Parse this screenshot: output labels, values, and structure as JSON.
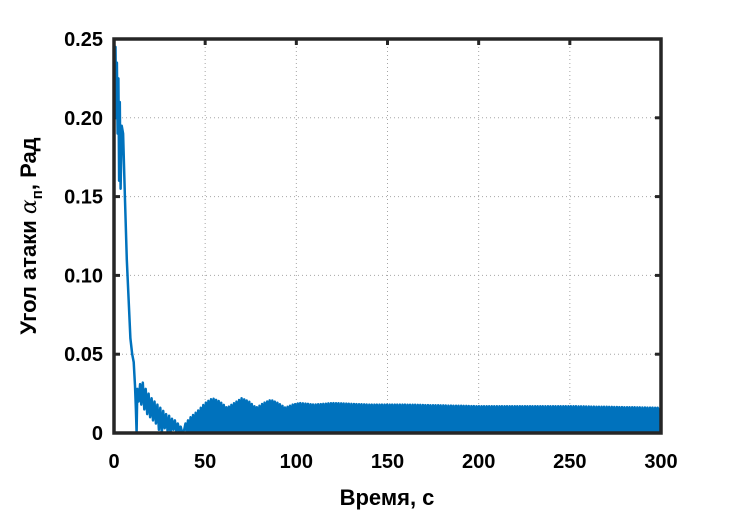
{
  "chart_data": {
    "type": "line",
    "xlabel": "Время, с",
    "ylabel_main": "Угол атаки ",
    "ylabel_symbol": "α",
    "ylabel_subscript": "п",
    "ylabel_unit": ", Рад",
    "xlim": [
      0,
      300
    ],
    "ylim": [
      0,
      0.25
    ],
    "x_ticks": [
      0,
      50,
      100,
      150,
      200,
      250,
      300
    ],
    "x_tick_labels": [
      "0",
      "50",
      "100",
      "150",
      "200",
      "250",
      "300"
    ],
    "y_ticks": [
      0,
      0.05,
      0.1,
      0.15,
      0.2,
      0.25
    ],
    "y_tick_labels": [
      "0",
      "0.05",
      "0.10",
      "0.15",
      "0.20",
      "0.25"
    ],
    "grid": true,
    "line_color": "#0072BD",
    "series": [
      {
        "points": [
          [
            0,
            0.25
          ],
          [
            0.4,
            0.215
          ],
          [
            0.8,
            0.245
          ],
          [
            1.2,
            0.2
          ],
          [
            1.6,
            0.235
          ],
          [
            2.0,
            0.19
          ],
          [
            2.4,
            0.225
          ],
          [
            2.8,
            0.16
          ],
          [
            3.2,
            0.21
          ],
          [
            3.6,
            0.155
          ],
          [
            4.2,
            0.195
          ],
          [
            5.0,
            0.19
          ],
          [
            6.0,
            0.15
          ],
          [
            7.0,
            0.11
          ],
          [
            8.0,
            0.085
          ],
          [
            9.0,
            0.06
          ],
          [
            10.0,
            0.05
          ],
          [
            10.8,
            0.045
          ],
          [
            11.5,
            0.03
          ],
          [
            12.0,
            0.015
          ],
          [
            12.4,
            0.0
          ],
          [
            12.8,
            0.028
          ],
          [
            13.5,
            0.02
          ],
          [
            14.3,
            0.031
          ],
          [
            15.0,
            0.018
          ],
          [
            15.8,
            0.032
          ],
          [
            16.6,
            0.015
          ],
          [
            17.4,
            0.028
          ],
          [
            18.2,
            0.012
          ],
          [
            19.0,
            0.025
          ],
          [
            19.8,
            0.01
          ],
          [
            20.6,
            0.022
          ],
          [
            21.4,
            0.008
          ],
          [
            22.2,
            0.02
          ],
          [
            23.0,
            0.006
          ],
          [
            23.8,
            0.018
          ],
          [
            24.6,
            0.002
          ],
          [
            25.4,
            0.016
          ],
          [
            26.2,
            0.0
          ],
          [
            27.0,
            0.014
          ],
          [
            27.8,
            0.003
          ],
          [
            28.6,
            0.012
          ],
          [
            29.4,
            0.001
          ],
          [
            30.2,
            0.011
          ],
          [
            31.0,
            0.0
          ],
          [
            31.8,
            0.009
          ],
          [
            32.6,
            0.002
          ],
          [
            33.4,
            0.008
          ],
          [
            34.2,
            0.0
          ],
          [
            35.0,
            0.006
          ],
          [
            35.8,
            0.001
          ],
          [
            36.6,
            0.004
          ],
          [
            37.4,
            0.0
          ],
          [
            38.5,
            0.002
          ]
        ],
        "oscillation": {
          "start": 38.5,
          "end": 300,
          "period": 1.4,
          "min": 0.0,
          "envelope": [
            [
              38.5,
              0.005
            ],
            [
              42,
              0.01
            ],
            [
              46,
              0.014
            ],
            [
              50,
              0.019
            ],
            [
              54,
              0.022
            ],
            [
              58,
              0.02
            ],
            [
              62,
              0.016
            ],
            [
              66,
              0.019
            ],
            [
              70,
              0.022
            ],
            [
              74,
              0.02
            ],
            [
              78,
              0.016
            ],
            [
              82,
              0.019
            ],
            [
              86,
              0.021
            ],
            [
              90,
              0.019
            ],
            [
              94,
              0.016
            ],
            [
              98,
              0.018
            ],
            [
              102,
              0.019
            ],
            [
              110,
              0.018
            ],
            [
              120,
              0.019
            ],
            [
              140,
              0.018
            ],
            [
              160,
              0.018
            ],
            [
              200,
              0.017
            ],
            [
              250,
              0.017
            ],
            [
              300,
              0.016
            ]
          ]
        }
      }
    ]
  }
}
